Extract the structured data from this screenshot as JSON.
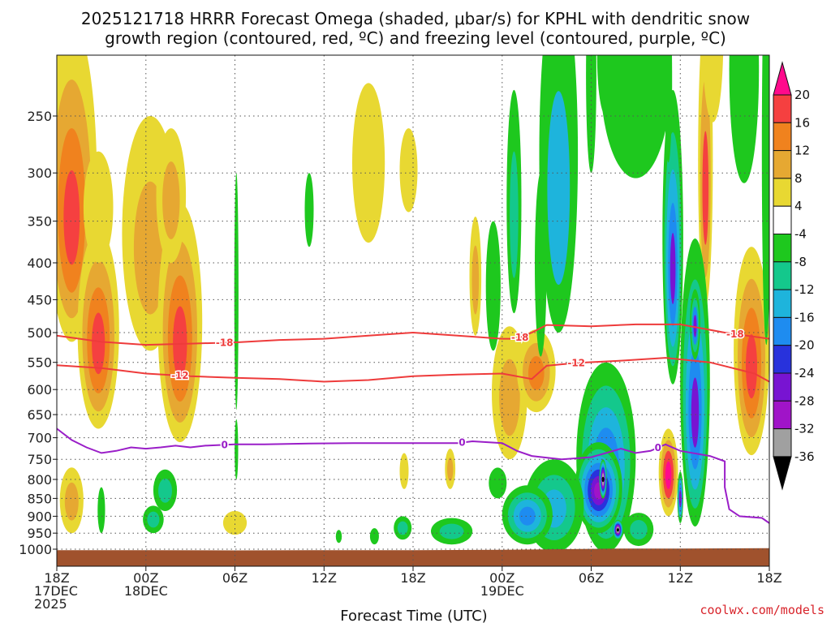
{
  "chart_data": {
    "type": "heatmap",
    "title_line1": "2025121718 HRRR Forecast Omega (shaded, μbar/s) for KPHL with dendritic snow",
    "title_line2": "growth region (contoured, red, ºC) and freezing level (contoured, purple, ºC)",
    "xlabel": "Forecast Time (UTC)",
    "credit": "coolwx.com/models",
    "x_range_hours": [
      0,
      48
    ],
    "y_range_hpa": [
      1015,
      200
    ],
    "y_scale": "log-pressure",
    "grid": true,
    "x_ticks": [
      {
        "h": 0,
        "line1": "18Z",
        "line2": "17DEC",
        "line3": "2025"
      },
      {
        "h": 6,
        "line1": "00Z",
        "line2": "18DEC",
        "line3": ""
      },
      {
        "h": 12,
        "line1": "06Z",
        "line2": "",
        "line3": ""
      },
      {
        "h": 18,
        "line1": "12Z",
        "line2": "",
        "line3": ""
      },
      {
        "h": 24,
        "line1": "18Z",
        "line2": "",
        "line3": ""
      },
      {
        "h": 30,
        "line1": "00Z",
        "line2": "19DEC",
        "line3": ""
      },
      {
        "h": 36,
        "line1": "06Z",
        "line2": "",
        "line3": ""
      },
      {
        "h": 42,
        "line1": "12Z",
        "line2": "",
        "line3": ""
      },
      {
        "h": 48,
        "line1": "18Z",
        "line2": "",
        "line3": ""
      }
    ],
    "y_ticks": [
      {
        "p": 250,
        "label": "250"
      },
      {
        "p": 300,
        "label": "300"
      },
      {
        "p": 350,
        "label": "350"
      },
      {
        "p": 400,
        "label": "400"
      },
      {
        "p": 450,
        "label": "450"
      },
      {
        "p": 500,
        "label": "500"
      },
      {
        "p": 550,
        "label": "550"
      },
      {
        "p": 600,
        "label": "600"
      },
      {
        "p": 650,
        "label": "650"
      },
      {
        "p": 700,
        "label": "700"
      },
      {
        "p": 750,
        "label": "750"
      },
      {
        "p": 800,
        "label": "800"
      },
      {
        "p": 850,
        "label": "850"
      },
      {
        "p": 900,
        "label": "900"
      },
      {
        "p": 950,
        "label": "950"
      },
      {
        "p": 1000,
        "label": "1000"
      }
    ],
    "colorbar": [
      {
        "label": "20",
        "color": "#ff0a8c"
      },
      {
        "label": "16",
        "color": "#f54040"
      },
      {
        "label": "12",
        "color": "#f0821e"
      },
      {
        "label": "8",
        "color": "#e6a832"
      },
      {
        "label": "4",
        "color": "#e8d832"
      },
      {
        "label": "-4",
        "color": "#ffffff"
      },
      {
        "label": "-8",
        "color": "#1ec81e"
      },
      {
        "label": "-12",
        "color": "#14c88c"
      },
      {
        "label": "-16",
        "color": "#1eb4dc"
      },
      {
        "label": "-20",
        "color": "#1e8cf0"
      },
      {
        "label": "-24",
        "color": "#2832dc"
      },
      {
        "label": "-28",
        "color": "#7814d2"
      },
      {
        "label": "-32",
        "color": "#a014c8"
      },
      {
        "label": "-36",
        "color": "#a0a0a0"
      }
    ],
    "colorbar_bottom_color": "#000000",
    "terrain_color": "#a0522d",
    "omega_blobs": [
      {
        "h": 1.0,
        "p": 350,
        "dh": 1.7,
        "dp": 165,
        "levels": [
          4,
          8,
          12,
          16
        ]
      },
      {
        "h": 1.0,
        "p": 860,
        "dh": 0.8,
        "dp": 90,
        "levels": [
          4,
          8
        ]
      },
      {
        "h": 2.8,
        "p": 520,
        "dh": 1.4,
        "dp": 160,
        "levels": [
          4,
          8,
          12,
          16
        ]
      },
      {
        "h": 2.8,
        "p": 340,
        "dh": 1.0,
        "dp": 60,
        "levels": [
          4
        ]
      },
      {
        "h": 6.3,
        "p": 390,
        "dh": 1.9,
        "dp": 140,
        "levels": [
          4,
          8
        ]
      },
      {
        "h": 8.3,
        "p": 520,
        "dh": 1.5,
        "dp": 190,
        "levels": [
          4,
          8,
          12,
          16
        ]
      },
      {
        "h": 7.7,
        "p": 330,
        "dh": 1.0,
        "dp": 70,
        "levels": [
          4,
          8
        ]
      },
      {
        "h": 12.0,
        "p": 920,
        "dh": 0.8,
        "dp": 35,
        "levels": [
          4
        ]
      },
      {
        "h": 12.1,
        "p": 455,
        "dh": 0.12,
        "dp": 25,
        "levels": [
          4
        ]
      },
      {
        "h": 21.0,
        "p": 300,
        "dh": 1.1,
        "dp": 75,
        "levels": [
          4
        ]
      },
      {
        "h": 23.7,
        "p": 300,
        "dh": 0.6,
        "dp": 40,
        "levels": [
          4
        ]
      },
      {
        "h": 23.4,
        "p": 780,
        "dh": 0.3,
        "dp": 45,
        "levels": [
          4
        ]
      },
      {
        "h": 26.5,
        "p": 775,
        "dh": 0.35,
        "dp": 50,
        "levels": [
          4,
          8
        ]
      },
      {
        "h": 28.2,
        "p": 425,
        "dh": 0.4,
        "dp": 80,
        "levels": [
          4,
          8
        ]
      },
      {
        "h": 30.5,
        "p": 620,
        "dh": 1.2,
        "dp": 130,
        "levels": [
          4,
          8
        ]
      },
      {
        "h": 32.3,
        "p": 570,
        "dh": 1.3,
        "dp": 75,
        "levels": [
          4,
          8,
          12
        ]
      },
      {
        "h": 37.5,
        "p": 780,
        "dh": 0.6,
        "dp": 50,
        "levels": [
          4,
          8,
          16,
          20
        ]
      },
      {
        "h": 41.2,
        "p": 790,
        "dh": 0.65,
        "dp": 110,
        "levels": [
          4,
          8,
          16,
          20
        ]
      },
      {
        "h": 43.7,
        "p": 320,
        "dh": 0.5,
        "dp": 140,
        "levels": [
          4,
          8,
          16
        ]
      },
      {
        "h": 44.2,
        "p": 200,
        "dh": 0.7,
        "dp": 55,
        "levels": [
          4
        ]
      },
      {
        "h": 46.8,
        "p": 560,
        "dh": 1.2,
        "dp": 180,
        "levels": [
          4,
          8,
          12,
          16
        ]
      }
    ],
    "omega_neg_blobs": [
      {
        "h": 33.8,
        "p": 330,
        "dh": 1.3,
        "dp": 170,
        "levels": [
          -4,
          -12
        ]
      },
      {
        "h": 37.0,
        "p": 210,
        "dh": 0.6,
        "dp": 40,
        "levels": [
          -4
        ]
      },
      {
        "h": 39.0,
        "p": 230,
        "dh": 2.4,
        "dp": 75,
        "levels": [
          -4
        ]
      },
      {
        "h": 41.5,
        "p": 410,
        "dh": 0.7,
        "dp": 180,
        "levels": [
          -4,
          -8,
          -12,
          -16,
          -24
        ]
      },
      {
        "h": 41.2,
        "p": 230,
        "dh": 0.25,
        "dp": 60,
        "levels": [
          -4
        ]
      },
      {
        "h": 43.0,
        "p": 650,
        "dh": 1.0,
        "dp": 280,
        "levels": [
          -4,
          -8,
          -12,
          -16,
          -24
        ]
      },
      {
        "h": 43.0,
        "p": 490,
        "dh": 0.35,
        "dp": 55,
        "levels": [
          -4,
          -8,
          -16,
          -24
        ]
      },
      {
        "h": 42.0,
        "p": 850,
        "dh": 0.2,
        "dp": 70,
        "levels": [
          -4,
          -12,
          -16,
          -24
        ]
      },
      {
        "h": 46.3,
        "p": 230,
        "dh": 1.0,
        "dp": 80,
        "levels": [
          -4
        ]
      },
      {
        "h": 47.8,
        "p": 320,
        "dh": 0.3,
        "dp": 200,
        "levels": [
          -4
        ]
      },
      {
        "h": 37.0,
        "p": 780,
        "dh": 2.0,
        "dp": 230,
        "levels": [
          -4,
          -8,
          -12,
          -16,
          -20
        ]
      },
      {
        "h": 36.5,
        "p": 830,
        "dh": 1.6,
        "dp": 120,
        "levels": [
          -4,
          -8,
          -12,
          -16,
          -20,
          -24,
          -28
        ]
      },
      {
        "h": 36.8,
        "p": 800,
        "dh": 0.25,
        "dp": 50,
        "levels": [
          -4,
          -8,
          -12,
          -16,
          -20,
          -24,
          -28,
          -32,
          -36,
          -40
        ]
      },
      {
        "h": 37.8,
        "p": 940,
        "dh": 0.35,
        "dp": 30,
        "levels": [
          -4,
          -8,
          -12,
          -16,
          -20,
          -24,
          -28,
          -32,
          -36,
          -40
        ]
      },
      {
        "h": 33.5,
        "p": 880,
        "dh": 2.0,
        "dp": 130,
        "levels": [
          -4,
          -8,
          -12
        ]
      },
      {
        "h": 31.7,
        "p": 900,
        "dh": 1.7,
        "dp": 85,
        "levels": [
          -4,
          -8,
          -12,
          -16
        ]
      },
      {
        "h": 39.2,
        "p": 940,
        "dh": 1.0,
        "dp": 50,
        "levels": [
          -4,
          -8
        ]
      },
      {
        "h": 29.7,
        "p": 810,
        "dh": 0.6,
        "dp": 40,
        "levels": [
          -4
        ]
      },
      {
        "h": 29.4,
        "p": 440,
        "dh": 0.5,
        "dp": 90,
        "levels": [
          -4
        ]
      },
      {
        "h": 30.8,
        "p": 350,
        "dh": 0.5,
        "dp": 120,
        "levels": [
          -4,
          -8
        ]
      },
      {
        "h": 32.6,
        "p": 420,
        "dh": 0.4,
        "dp": 120,
        "levels": [
          -4
        ]
      },
      {
        "h": 36.0,
        "p": 230,
        "dh": 0.35,
        "dp": 70,
        "levels": [
          -4
        ]
      },
      {
        "h": 26.6,
        "p": 945,
        "dh": 1.4,
        "dp": 40,
        "levels": [
          -4,
          -8
        ]
      },
      {
        "h": 23.3,
        "p": 935,
        "dh": 0.6,
        "dp": 35,
        "levels": [
          -4,
          -8
        ]
      },
      {
        "h": 21.4,
        "p": 960,
        "dh": 0.3,
        "dp": 25,
        "levels": [
          -4
        ]
      },
      {
        "h": 19.0,
        "p": 960,
        "dh": 0.2,
        "dp": 20,
        "levels": [
          -4
        ]
      },
      {
        "h": 12.1,
        "p": 470,
        "dh": 0.14,
        "dp": 170,
        "levels": [
          -4
        ]
      },
      {
        "h": 12.1,
        "p": 730,
        "dh": 0.12,
        "dp": 70,
        "levels": [
          -4
        ]
      },
      {
        "h": 7.3,
        "p": 830,
        "dh": 0.8,
        "dp": 55,
        "levels": [
          -4,
          -8
        ]
      },
      {
        "h": 6.5,
        "p": 910,
        "dh": 0.7,
        "dp": 40,
        "levels": [
          -4,
          -8
        ]
      },
      {
        "h": 3.0,
        "p": 885,
        "dh": 0.25,
        "dp": 65,
        "levels": [
          -4
        ]
      },
      {
        "h": 17.0,
        "p": 340,
        "dh": 0.3,
        "dp": 40,
        "levels": [
          -4
        ]
      }
    ],
    "snow_growth_contours": [
      {
        "label": "-18",
        "label_h": 11.3,
        "points": [
          [
            0,
            505
          ],
          [
            3,
            515
          ],
          [
            6,
            520
          ],
          [
            9,
            518
          ],
          [
            12,
            516
          ],
          [
            15,
            512
          ],
          [
            18,
            510
          ],
          [
            21,
            505
          ],
          [
            24,
            500
          ],
          [
            27,
            505
          ],
          [
            30,
            510
          ],
          [
            31,
            510
          ],
          [
            32,
            500
          ],
          [
            33,
            488
          ],
          [
            36,
            490
          ],
          [
            39,
            487
          ],
          [
            42,
            487
          ],
          [
            45,
            500
          ],
          [
            48,
            510
          ]
        ],
        "label2_h": 31.2,
        "label3_h": 45.7
      },
      {
        "label": "-12",
        "label_h": 8.3,
        "points": [
          [
            0,
            555
          ],
          [
            3,
            560
          ],
          [
            6,
            570
          ],
          [
            9,
            575
          ],
          [
            12,
            578
          ],
          [
            15,
            580
          ],
          [
            18,
            585
          ],
          [
            21,
            582
          ],
          [
            24,
            575
          ],
          [
            27,
            572
          ],
          [
            30,
            570
          ],
          [
            32,
            580
          ],
          [
            33,
            556
          ],
          [
            35,
            551
          ],
          [
            38,
            547
          ],
          [
            41,
            542
          ],
          [
            44,
            550
          ],
          [
            47,
            570
          ],
          [
            48,
            585
          ]
        ],
        "label2_h": 35.0
      }
    ],
    "freezing_level": {
      "label": "0",
      "label_h": 11.3,
      "label2_h": 27.3,
      "label3_h": 40.5,
      "points": [
        [
          0,
          680
        ],
        [
          1,
          705
        ],
        [
          2,
          722
        ],
        [
          3,
          735
        ],
        [
          4,
          730
        ],
        [
          5,
          722
        ],
        [
          6,
          725
        ],
        [
          7,
          722
        ],
        [
          8,
          718
        ],
        [
          9,
          722
        ],
        [
          10,
          718
        ],
        [
          12,
          715
        ],
        [
          14,
          715
        ],
        [
          17,
          713
        ],
        [
          20,
          712
        ],
        [
          24,
          712
        ],
        [
          27,
          712
        ],
        [
          28,
          708
        ],
        [
          30,
          712
        ],
        [
          31,
          730
        ],
        [
          32,
          742
        ],
        [
          34,
          750
        ],
        [
          36,
          745
        ],
        [
          37,
          735
        ],
        [
          38,
          725
        ],
        [
          39,
          735
        ],
        [
          40,
          730
        ],
        [
          41,
          715
        ],
        [
          42,
          730
        ],
        [
          44,
          742
        ],
        [
          45,
          755
        ],
        [
          45,
          820
        ],
        [
          45.3,
          880
        ],
        [
          46,
          900
        ],
        [
          47.5,
          905
        ],
        [
          48,
          920
        ]
      ]
    },
    "terrain_top_hpa": [
      [
        0,
        1003
      ],
      [
        6,
        1003
      ],
      [
        12,
        1004
      ],
      [
        18,
        1003
      ],
      [
        24,
        1003
      ],
      [
        30,
        1002
      ],
      [
        34,
        1000
      ],
      [
        38,
        998
      ],
      [
        42,
        998
      ],
      [
        48,
        997
      ]
    ]
  }
}
